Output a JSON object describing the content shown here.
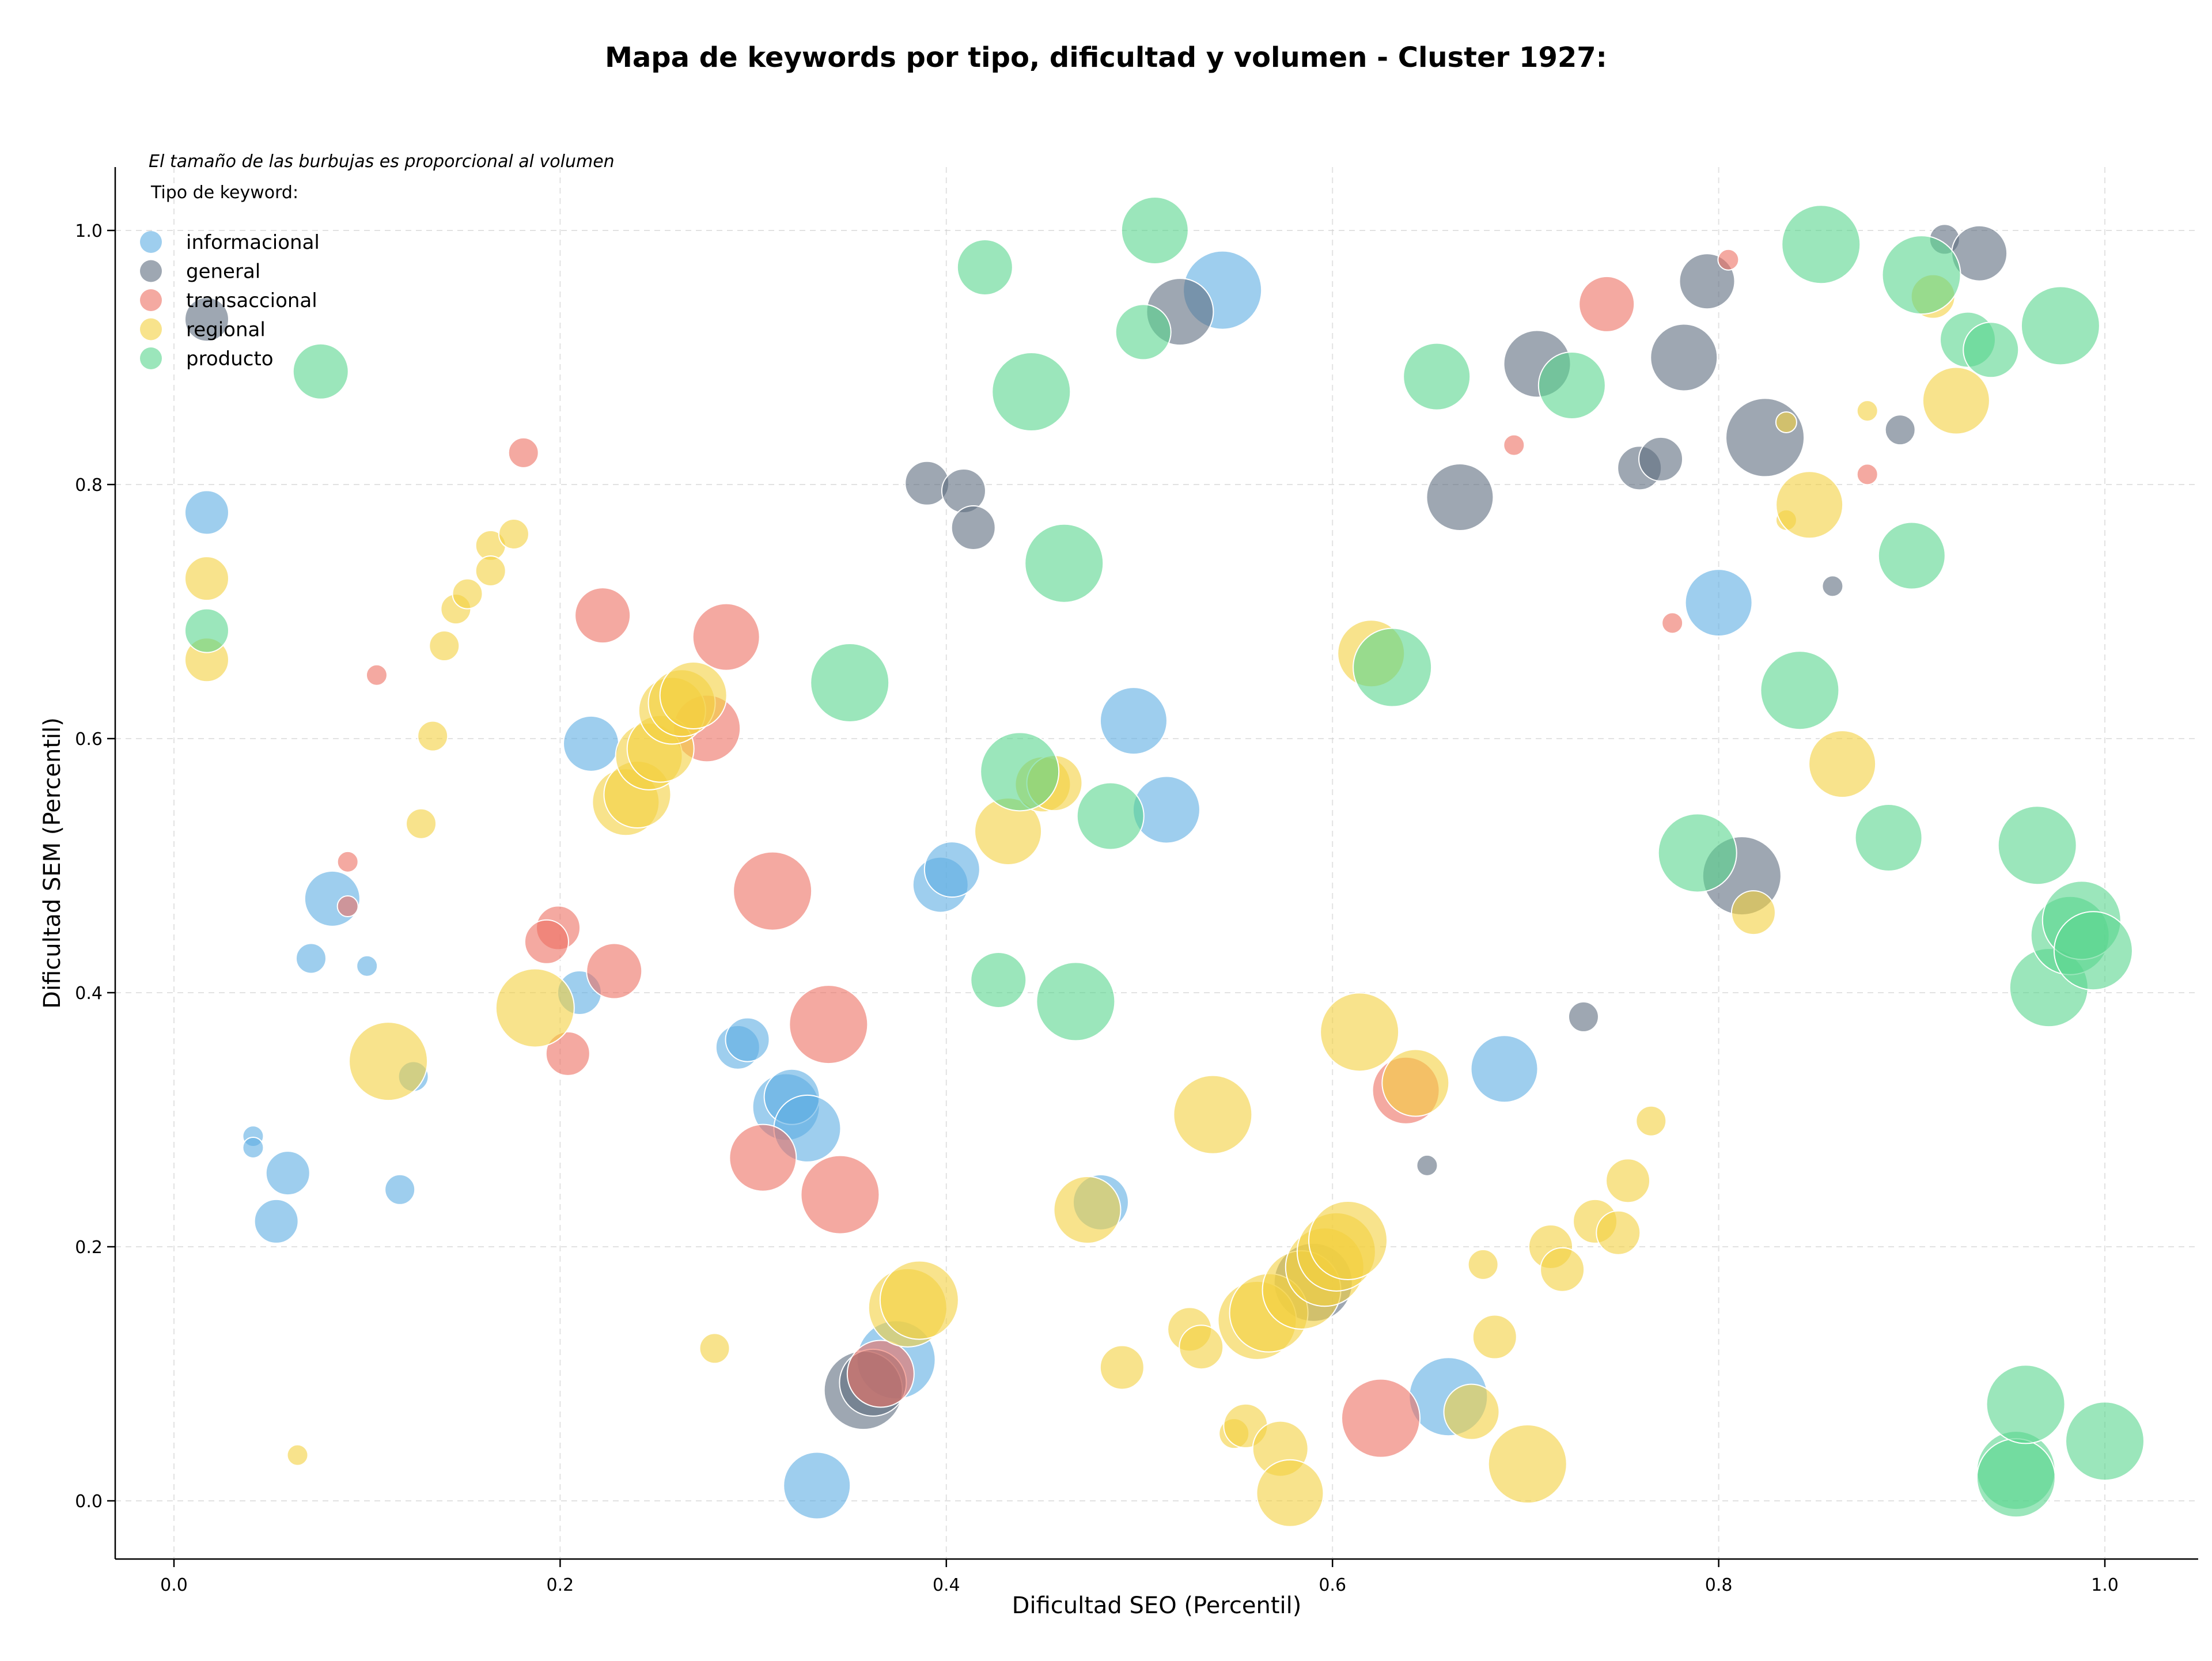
{
  "chart_data": {
    "type": "scatter",
    "title": "Mapa de keywords por tipo, dificultad y volumen - Cluster 1927:",
    "xlabel": "Dificultad SEO (Percentil)",
    "ylabel": "Dificultad SEM (Percentil)",
    "xlim": [
      -0.032,
      1.048
    ],
    "ylim": [
      -0.043,
      1.05
    ],
    "x_ticks": [
      "0.0",
      "0.2",
      "0.4",
      "0.6",
      "0.8",
      "1.0"
    ],
    "y_ticks": [
      "0.0",
      "0.2",
      "0.4",
      "0.6",
      "0.8",
      "1.0"
    ],
    "grid": true,
    "note": "El tamaño de las burbujas es proporcional al volumen",
    "legend_title": "Tipo de keyword:",
    "legend_position": "top-left",
    "size_encoding": "volume",
    "series": [
      {
        "name": "informacional",
        "color": "#5dade2",
        "points": [
          [
            0.017,
            0.778,
            3
          ],
          [
            0.082,
            0.474,
            4
          ],
          [
            0.071,
            0.427,
            2
          ],
          [
            0.1,
            0.421,
            1
          ],
          [
            0.041,
            0.287,
            1
          ],
          [
            0.041,
            0.278,
            1
          ],
          [
            0.059,
            0.258,
            3
          ],
          [
            0.053,
            0.22,
            3
          ],
          [
            0.117,
            0.245,
            2
          ],
          [
            0.124,
            0.334,
            2
          ],
          [
            0.216,
            0.596,
            4
          ],
          [
            0.21,
            0.4,
            3
          ],
          [
            0.292,
            0.357,
            3
          ],
          [
            0.297,
            0.363,
            3
          ],
          [
            0.317,
            0.31,
            5
          ],
          [
            0.32,
            0.318,
            4
          ],
          [
            0.328,
            0.293,
            5
          ],
          [
            0.374,
            0.111,
            6
          ],
          [
            0.333,
            0.012,
            5
          ],
          [
            0.397,
            0.485,
            4
          ],
          [
            0.403,
            0.497,
            4
          ],
          [
            0.48,
            0.235,
            4
          ],
          [
            0.497,
            0.614,
            5
          ],
          [
            0.514,
            0.544,
            5
          ],
          [
            0.543,
            0.953,
            6
          ],
          [
            0.66,
            0.082,
            6
          ],
          [
            0.689,
            0.34,
            5
          ],
          [
            0.8,
            0.707,
            5
          ]
        ]
      },
      {
        "name": "general",
        "color": "#5d6d7e",
        "points": [
          [
            0.017,
            0.93,
            3
          ],
          [
            0.39,
            0.801,
            3
          ],
          [
            0.409,
            0.795,
            3
          ],
          [
            0.414,
            0.766,
            3
          ],
          [
            0.357,
            0.087,
            6
          ],
          [
            0.362,
            0.093,
            5
          ],
          [
            0.521,
            0.936,
            5
          ],
          [
            0.649,
            0.264,
            1
          ],
          [
            0.666,
            0.79,
            5
          ],
          [
            0.706,
            0.895,
            5
          ],
          [
            0.73,
            0.381,
            2
          ],
          [
            0.759,
            0.813,
            3
          ],
          [
            0.77,
            0.82,
            3
          ],
          [
            0.782,
            0.9,
            5
          ],
          [
            0.794,
            0.96,
            4
          ],
          [
            0.812,
            0.492,
            6
          ],
          [
            0.824,
            0.837,
            6
          ],
          [
            0.859,
            0.72,
            1
          ],
          [
            0.894,
            0.843,
            2
          ],
          [
            0.917,
            0.993,
            2
          ],
          [
            0.935,
            0.982,
            4
          ],
          [
            0.59,
            0.172,
            6
          ]
        ]
      },
      {
        "name": "transaccional",
        "color": "#ec7063",
        "points": [
          [
            0.181,
            0.825,
            2
          ],
          [
            0.105,
            0.65,
            1
          ],
          [
            0.09,
            0.503,
            1
          ],
          [
            0.09,
            0.468,
            1
          ],
          [
            0.199,
            0.451,
            3
          ],
          [
            0.193,
            0.44,
            3
          ],
          [
            0.204,
            0.352,
            3
          ],
          [
            0.228,
            0.417,
            4
          ],
          [
            0.222,
            0.697,
            4
          ],
          [
            0.286,
            0.68,
            5
          ],
          [
            0.276,
            0.608,
            5
          ],
          [
            0.31,
            0.48,
            6
          ],
          [
            0.305,
            0.27,
            5
          ],
          [
            0.339,
            0.375,
            6
          ],
          [
            0.345,
            0.241,
            6
          ],
          [
            0.366,
            0.1,
            5
          ],
          [
            0.638,
            0.323,
            5
          ],
          [
            0.625,
            0.065,
            6
          ],
          [
            0.694,
            0.831,
            1
          ],
          [
            0.742,
            0.942,
            4
          ],
          [
            0.776,
            0.691,
            1
          ],
          [
            0.805,
            0.977,
            1
          ],
          [
            0.877,
            0.808,
            1
          ]
        ]
      },
      {
        "name": "regional",
        "color": "#f4d03f",
        "points": [
          [
            0.017,
            0.726,
            3
          ],
          [
            0.017,
            0.662,
            3
          ],
          [
            0.064,
            0.036,
            1
          ],
          [
            0.111,
            0.346,
            6
          ],
          [
            0.128,
            0.533,
            2
          ],
          [
            0.134,
            0.602,
            2
          ],
          [
            0.14,
            0.673,
            2
          ],
          [
            0.146,
            0.702,
            2
          ],
          [
            0.152,
            0.714,
            2
          ],
          [
            0.164,
            0.752,
            2
          ],
          [
            0.164,
            0.732,
            2
          ],
          [
            0.176,
            0.761,
            2
          ],
          [
            0.187,
            0.388,
            6
          ],
          [
            0.234,
            0.55,
            5
          ],
          [
            0.24,
            0.556,
            5
          ],
          [
            0.246,
            0.586,
            5
          ],
          [
            0.252,
            0.592,
            5
          ],
          [
            0.258,
            0.622,
            5
          ],
          [
            0.263,
            0.628,
            5
          ],
          [
            0.269,
            0.634,
            5
          ],
          [
            0.28,
            0.12,
            2
          ],
          [
            0.38,
            0.152,
            6
          ],
          [
            0.386,
            0.158,
            6
          ],
          [
            0.432,
            0.527,
            5
          ],
          [
            0.45,
            0.564,
            4
          ],
          [
            0.456,
            0.565,
            4
          ],
          [
            0.473,
            0.229,
            5
          ],
          [
            0.491,
            0.105,
            3
          ],
          [
            0.526,
            0.135,
            3
          ],
          [
            0.532,
            0.121,
            3
          ],
          [
            0.538,
            0.304,
            6
          ],
          [
            0.549,
            0.053,
            2
          ],
          [
            0.555,
            0.059,
            3
          ],
          [
            0.561,
            0.142,
            6
          ],
          [
            0.567,
            0.148,
            6
          ],
          [
            0.573,
            0.041,
            4
          ],
          [
            0.578,
            0.006,
            5
          ],
          [
            0.584,
            0.166,
            6
          ],
          [
            0.596,
            0.184,
            6
          ],
          [
            0.602,
            0.196,
            6
          ],
          [
            0.608,
            0.205,
            6
          ],
          [
            0.614,
            0.369,
            6
          ],
          [
            0.62,
            0.667,
            5
          ],
          [
            0.643,
            0.329,
            5
          ],
          [
            0.672,
            0.07,
            4
          ],
          [
            0.678,
            0.186,
            2
          ],
          [
            0.684,
            0.129,
            3
          ],
          [
            0.701,
            0.029,
            6
          ],
          [
            0.713,
            0.2,
            3
          ],
          [
            0.719,
            0.182,
            3
          ],
          [
            0.736,
            0.22,
            3
          ],
          [
            0.748,
            0.211,
            3
          ],
          [
            0.753,
            0.252,
            3
          ],
          [
            0.765,
            0.299,
            2
          ],
          [
            0.818,
            0.463,
            3
          ],
          [
            0.835,
            0.772,
            1
          ],
          [
            0.835,
            0.849,
            1
          ],
          [
            0.847,
            0.784,
            5
          ],
          [
            0.864,
            0.58,
            5
          ],
          [
            0.877,
            0.858,
            1
          ],
          [
            0.911,
            0.948,
            3
          ],
          [
            0.923,
            0.866,
            5
          ]
        ]
      },
      {
        "name": "producto",
        "color": "#58d68d",
        "points": [
          [
            0.017,
            0.685,
            3
          ],
          [
            0.076,
            0.889,
            4
          ],
          [
            0.35,
            0.644,
            6
          ],
          [
            0.42,
            0.971,
            4
          ],
          [
            0.427,
            0.41,
            4
          ],
          [
            0.438,
            0.574,
            6
          ],
          [
            0.444,
            0.873,
            6
          ],
          [
            0.461,
            0.738,
            6
          ],
          [
            0.467,
            0.393,
            6
          ],
          [
            0.485,
            0.539,
            5
          ],
          [
            0.502,
            0.92,
            4
          ],
          [
            0.508,
            1.0,
            5
          ],
          [
            0.631,
            0.656,
            6
          ],
          [
            0.654,
            0.885,
            5
          ],
          [
            0.724,
            0.878,
            5
          ],
          [
            0.789,
            0.51,
            6
          ],
          [
            0.842,
            0.638,
            6
          ],
          [
            0.853,
            0.989,
            6
          ],
          [
            0.888,
            0.522,
            5
          ],
          [
            0.9,
            0.744,
            5
          ],
          [
            0.905,
            0.965,
            6
          ],
          [
            0.929,
            0.914,
            4
          ],
          [
            0.941,
            0.906,
            4
          ],
          [
            0.954,
            0.024,
            6
          ],
          [
            0.954,
            0.018,
            6
          ],
          [
            0.959,
            0.076,
            6
          ],
          [
            0.965,
            0.516,
            6
          ],
          [
            0.971,
            0.404,
            6
          ],
          [
            0.977,
            0.925,
            6
          ],
          [
            0.982,
            0.445,
            6
          ],
          [
            0.988,
            0.457,
            6
          ],
          [
            0.994,
            0.433,
            6
          ],
          [
            1.0,
            0.047,
            6
          ]
        ]
      }
    ]
  }
}
